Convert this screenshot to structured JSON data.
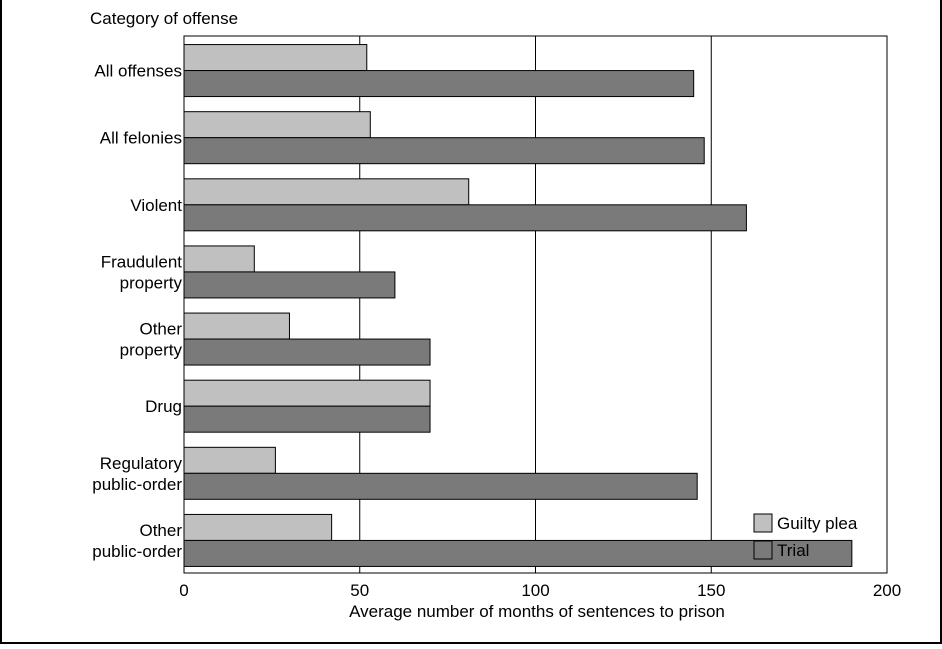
{
  "chart_data": {
    "type": "bar",
    "orientation": "horizontal",
    "title": "Category of offense",
    "xlabel": "Average number of months of sentences to prison",
    "ylabel": "",
    "xlim": [
      0,
      200
    ],
    "xticks": [
      0,
      50,
      100,
      150,
      200
    ],
    "grid": "vertical",
    "legend_position": "bottom-right",
    "categories": [
      [
        "All offenses"
      ],
      [
        "All felonies"
      ],
      [
        "Violent"
      ],
      [
        "Fraudulent",
        "property"
      ],
      [
        "Other",
        "property"
      ],
      [
        "Drug"
      ],
      [
        "Regulatory",
        "public-order"
      ],
      [
        "Other",
        "public-order"
      ]
    ],
    "series": [
      {
        "name": "Guilty plea",
        "color": "#c0c0c0",
        "values": [
          52,
          53,
          81,
          20,
          30,
          70,
          26,
          42
        ]
      },
      {
        "name": "Trial",
        "color": "#7a7a7a",
        "values": [
          145,
          148,
          160,
          60,
          70,
          70,
          146,
          190
        ]
      }
    ]
  }
}
